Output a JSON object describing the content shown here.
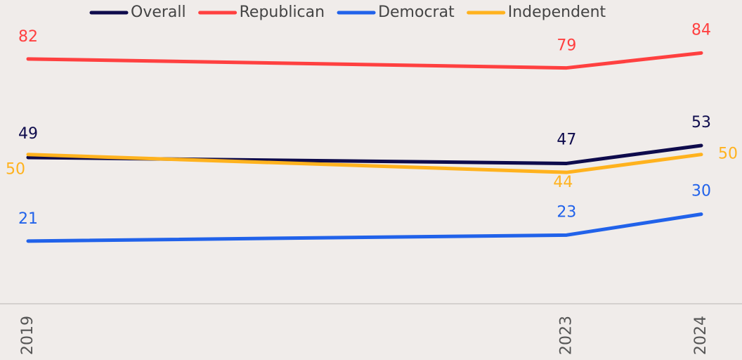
{
  "chart_data": {
    "type": "line",
    "x": [
      2019,
      2023,
      2024
    ],
    "xlim": [
      2019,
      2024
    ],
    "xticks": [
      2019,
      2023,
      2024
    ],
    "ylim": [
      0,
      100
    ],
    "legend": "top",
    "series": [
      {
        "name": "Overall",
        "color": "#0e0b4c",
        "values": [
          49,
          47,
          53
        ]
      },
      {
        "name": "Republican",
        "color": "#ff4040",
        "values": [
          82,
          79,
          84
        ]
      },
      {
        "name": "Democrat",
        "color": "#2162ea",
        "values": [
          21,
          23,
          30
        ]
      },
      {
        "name": "Independent",
        "color": "#ffb21e",
        "values": [
          50,
          44,
          50
        ]
      }
    ]
  }
}
